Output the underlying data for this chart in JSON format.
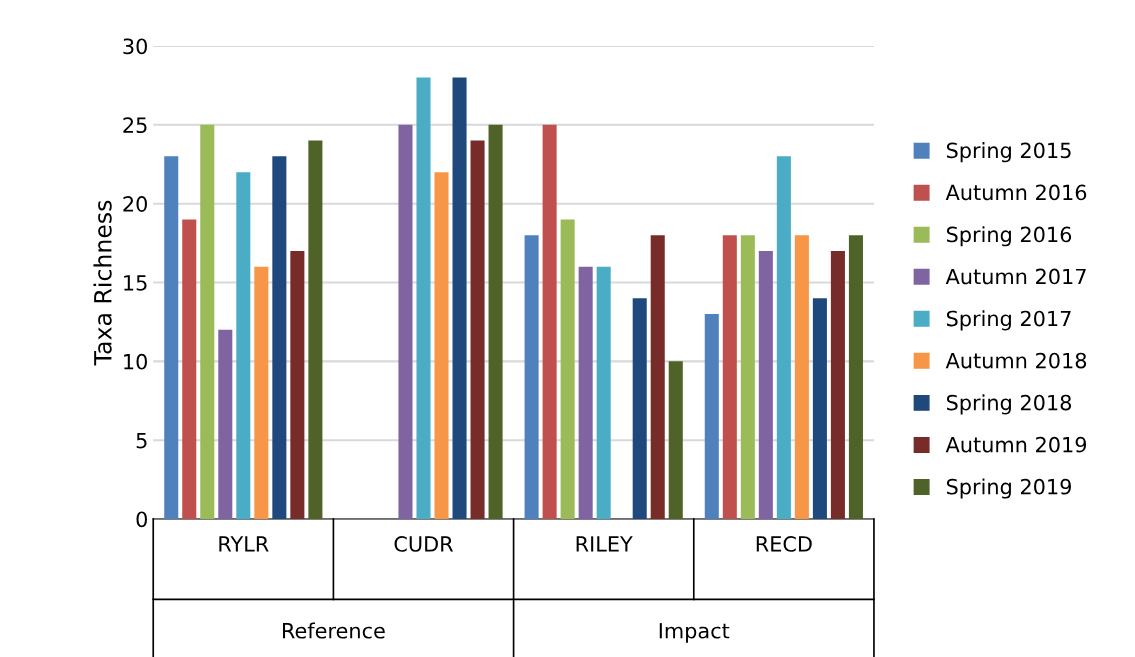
{
  "chart_data": {
    "type": "bar",
    "ylabel": "Taxa Richness",
    "categories": [
      "RYLR",
      "CUDR",
      "RILEY",
      "RECD"
    ],
    "annotations": [
      "Reference",
      "Impact"
    ],
    "series": [
      {
        "name": "Spring 2015",
        "color": "#4f81bd",
        "values": [
          23,
          null,
          18,
          13
        ]
      },
      {
        "name": "Autumn 2016",
        "color": "#c0504d",
        "values": [
          19,
          null,
          25,
          18
        ]
      },
      {
        "name": "Spring 2016",
        "color": "#9bbb59",
        "values": [
          25,
          null,
          19,
          18
        ]
      },
      {
        "name": "Autumn 2017",
        "color": "#8064a2",
        "values": [
          12,
          25,
          16,
          17
        ]
      },
      {
        "name": "Spring 2017",
        "color": "#4bacc6",
        "values": [
          22,
          28,
          16,
          23
        ]
      },
      {
        "name": "Autumn 2018",
        "color": "#f79646",
        "values": [
          16,
          22,
          null,
          18
        ]
      },
      {
        "name": "Spring 2018",
        "color": "#1f497d",
        "values": [
          23,
          28,
          14,
          14
        ]
      },
      {
        "name": "Autumn 2019",
        "color": "#772c2a",
        "values": [
          17,
          24,
          18,
          17
        ]
      },
      {
        "name": "Spring 2019",
        "color": "#4f6228",
        "values": [
          24,
          25,
          10,
          18
        ]
      }
    ],
    "ylim": [
      0,
      30
    ],
    "yticks": [
      0,
      5,
      10,
      15,
      20,
      25,
      30
    ],
    "grid": "y",
    "legend": "right"
  }
}
